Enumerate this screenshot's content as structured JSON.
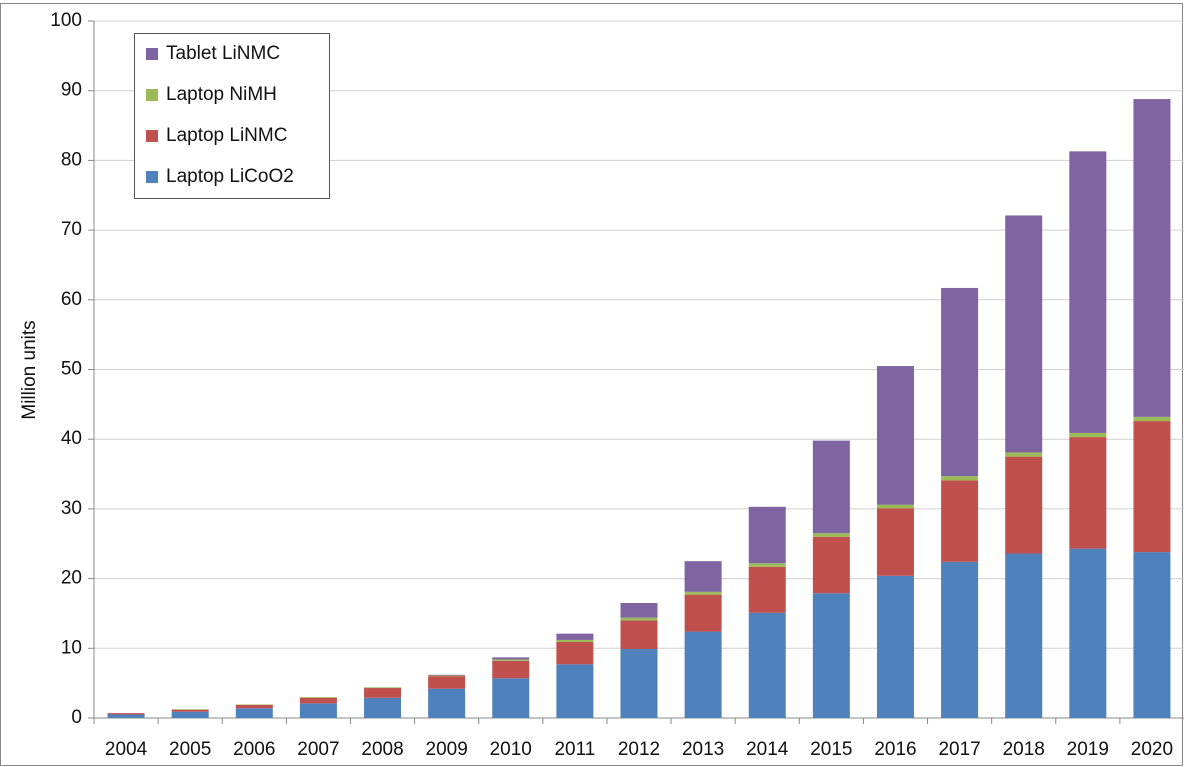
{
  "chart_data": {
    "type": "stacked_bar",
    "y_label": "Million units",
    "categories": [
      "2004",
      "2005",
      "2006",
      "2007",
      "2008",
      "2009",
      "2010",
      "2011",
      "2012",
      "2013",
      "2014",
      "2015",
      "2016",
      "2017",
      "2018",
      "2019",
      "2020"
    ],
    "series": [
      {
        "name": "Laptop LiCoO2",
        "color": "#4f81bd",
        "values": [
          0.5,
          0.9,
          1.4,
          2.1,
          2.9,
          4.2,
          5.7,
          7.7,
          9.9,
          12.4,
          15.1,
          17.9,
          20.4,
          22.4,
          23.6,
          24.3,
          23.8
        ]
      },
      {
        "name": "Laptop LiNMC",
        "color": "#c0504d",
        "values": [
          0.2,
          0.3,
          0.5,
          0.8,
          1.4,
          1.8,
          2.5,
          3.2,
          4.1,
          5.3,
          6.6,
          8.1,
          9.7,
          11.7,
          13.9,
          16.0,
          18.8
        ]
      },
      {
        "name": "Laptop NiMH",
        "color": "#9bbb59",
        "values": [
          0,
          0.05,
          0.05,
          0.1,
          0.1,
          0.1,
          0.2,
          0.3,
          0.4,
          0.4,
          0.5,
          0.5,
          0.5,
          0.6,
          0.6,
          0.6,
          0.6
        ]
      },
      {
        "name": "Tablet LiNMC",
        "color": "#8064a2",
        "values": [
          0,
          0,
          0,
          0,
          0,
          0.1,
          0.3,
          0.9,
          2.1,
          4.4,
          8.1,
          13.3,
          19.9,
          27.0,
          34.0,
          40.4,
          45.6
        ]
      }
    ],
    "ylim": [
      0,
      100
    ],
    "yticks": [
      0,
      10,
      20,
      30,
      40,
      50,
      60,
      70,
      80,
      90,
      100
    ],
    "grid": true,
    "legend": "upper left"
  }
}
